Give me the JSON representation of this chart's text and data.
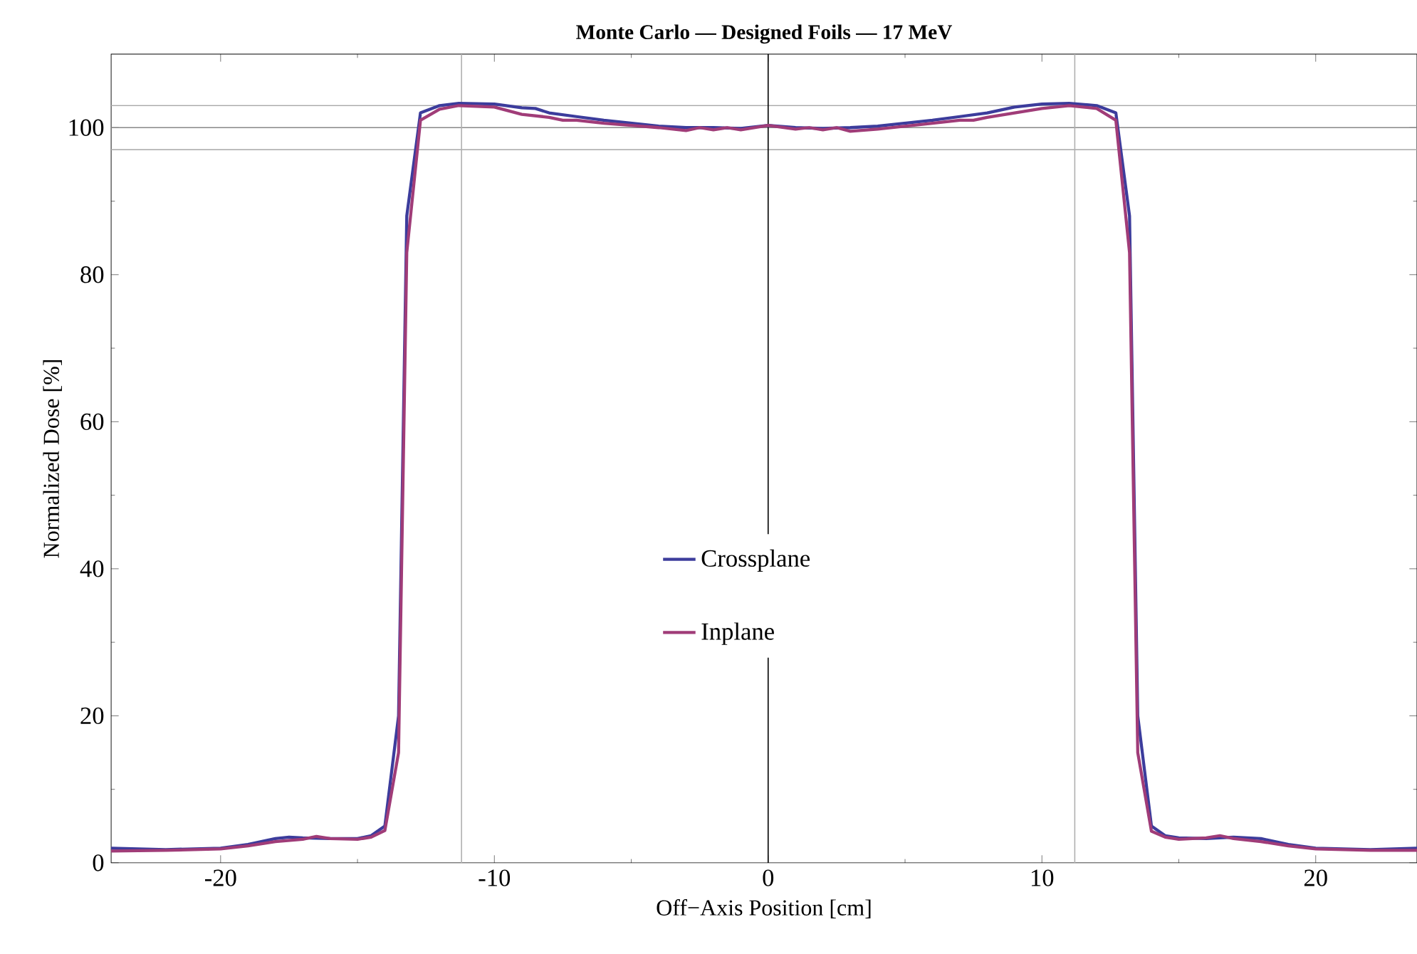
{
  "chart_data": {
    "type": "line",
    "title": "Monte Carlo — Designed Foils — 17 MeV",
    "xlabel": "Off−Axis Position [cm]",
    "ylabel": "Normalized Dose [%]",
    "xlim": [
      -24,
      23.7
    ],
    "ylim": [
      0,
      110
    ],
    "xticks": [
      -20,
      -10,
      0,
      10,
      20
    ],
    "yticks": [
      0,
      20,
      40,
      60,
      80,
      100
    ],
    "grid": false,
    "legend": "center",
    "line_style": "solid",
    "marker": "none",
    "ref_lines": [
      {
        "axis": "y",
        "value": 97,
        "color": "#a8a8a8"
      },
      {
        "axis": "y",
        "value": 100,
        "color": "#888888"
      },
      {
        "axis": "y",
        "value": 103,
        "color": "#a8a8a8"
      },
      {
        "axis": "x",
        "value": -11.2,
        "color": "#b0b0b0"
      },
      {
        "axis": "x",
        "value": 11.2,
        "color": "#b0b0b0"
      },
      {
        "axis": "x",
        "value": 0,
        "color": "#000000"
      }
    ],
    "series": [
      {
        "name": "Crossplane",
        "color": "#3c3c9c",
        "x": [
          -24,
          -22,
          -20,
          -19,
          -18,
          -17.5,
          -17,
          -16,
          -15,
          -14.5,
          -14,
          -13.5,
          -13.2,
          -12.7,
          -12,
          -11.3,
          -10,
          -9,
          -8.5,
          -8,
          -7,
          -6,
          -5,
          -4,
          -3,
          -2,
          -1,
          0,
          1,
          2,
          3,
          4,
          5,
          6,
          7,
          8,
          9,
          10,
          11,
          12,
          12.7,
          13.2,
          13.5,
          14,
          14.5,
          15,
          16,
          17,
          18,
          19,
          20,
          22,
          23.7
        ],
        "values": [
          2,
          1.8,
          2,
          2.5,
          3.3,
          3.5,
          3.4,
          3.3,
          3.3,
          3.7,
          5,
          20,
          88,
          102,
          103,
          103.3,
          103.2,
          102.7,
          102.6,
          102,
          101.5,
          101,
          100.6,
          100.2,
          100,
          100,
          99.9,
          100.3,
          100,
          99.9,
          100,
          100.2,
          100.6,
          101,
          101.5,
          102,
          102.8,
          103.2,
          103.3,
          103,
          102,
          88,
          20,
          5,
          3.7,
          3.4,
          3.3,
          3.5,
          3.3,
          2.5,
          2,
          1.8,
          2
        ]
      },
      {
        "name": "Inplane",
        "color": "#a03c78",
        "x": [
          -24,
          -22,
          -20,
          -19,
          -18,
          -17,
          -16.5,
          -16,
          -15,
          -14.5,
          -14,
          -13.5,
          -13.2,
          -12.7,
          -12,
          -11.3,
          -10,
          -9,
          -8,
          -7.5,
          -7,
          -6,
          -5,
          -4,
          -3,
          -2.5,
          -2,
          -1.5,
          -1,
          0,
          1,
          1.5,
          2,
          2.5,
          3,
          4,
          5,
          6,
          7,
          7.5,
          8,
          9,
          10,
          11,
          12,
          12.7,
          13.2,
          13.5,
          14,
          14.5,
          15,
          16,
          16.5,
          17,
          18,
          19,
          20,
          22,
          23.7
        ],
        "values": [
          1.6,
          1.7,
          1.9,
          2.3,
          2.9,
          3.2,
          3.6,
          3.3,
          3.2,
          3.5,
          4.4,
          15,
          83,
          101,
          102.5,
          103,
          102.8,
          101.8,
          101.4,
          101,
          101,
          100.6,
          100.3,
          100,
          99.6,
          100,
          99.7,
          100,
          99.7,
          100.3,
          99.8,
          100,
          99.7,
          100,
          99.5,
          99.8,
          100.2,
          100.6,
          101,
          101,
          101.4,
          102,
          102.6,
          103,
          102.6,
          101,
          83,
          15,
          4.3,
          3.5,
          3.2,
          3.4,
          3.7,
          3.3,
          2.9,
          2.3,
          1.9,
          1.7,
          1.7
        ]
      }
    ]
  }
}
